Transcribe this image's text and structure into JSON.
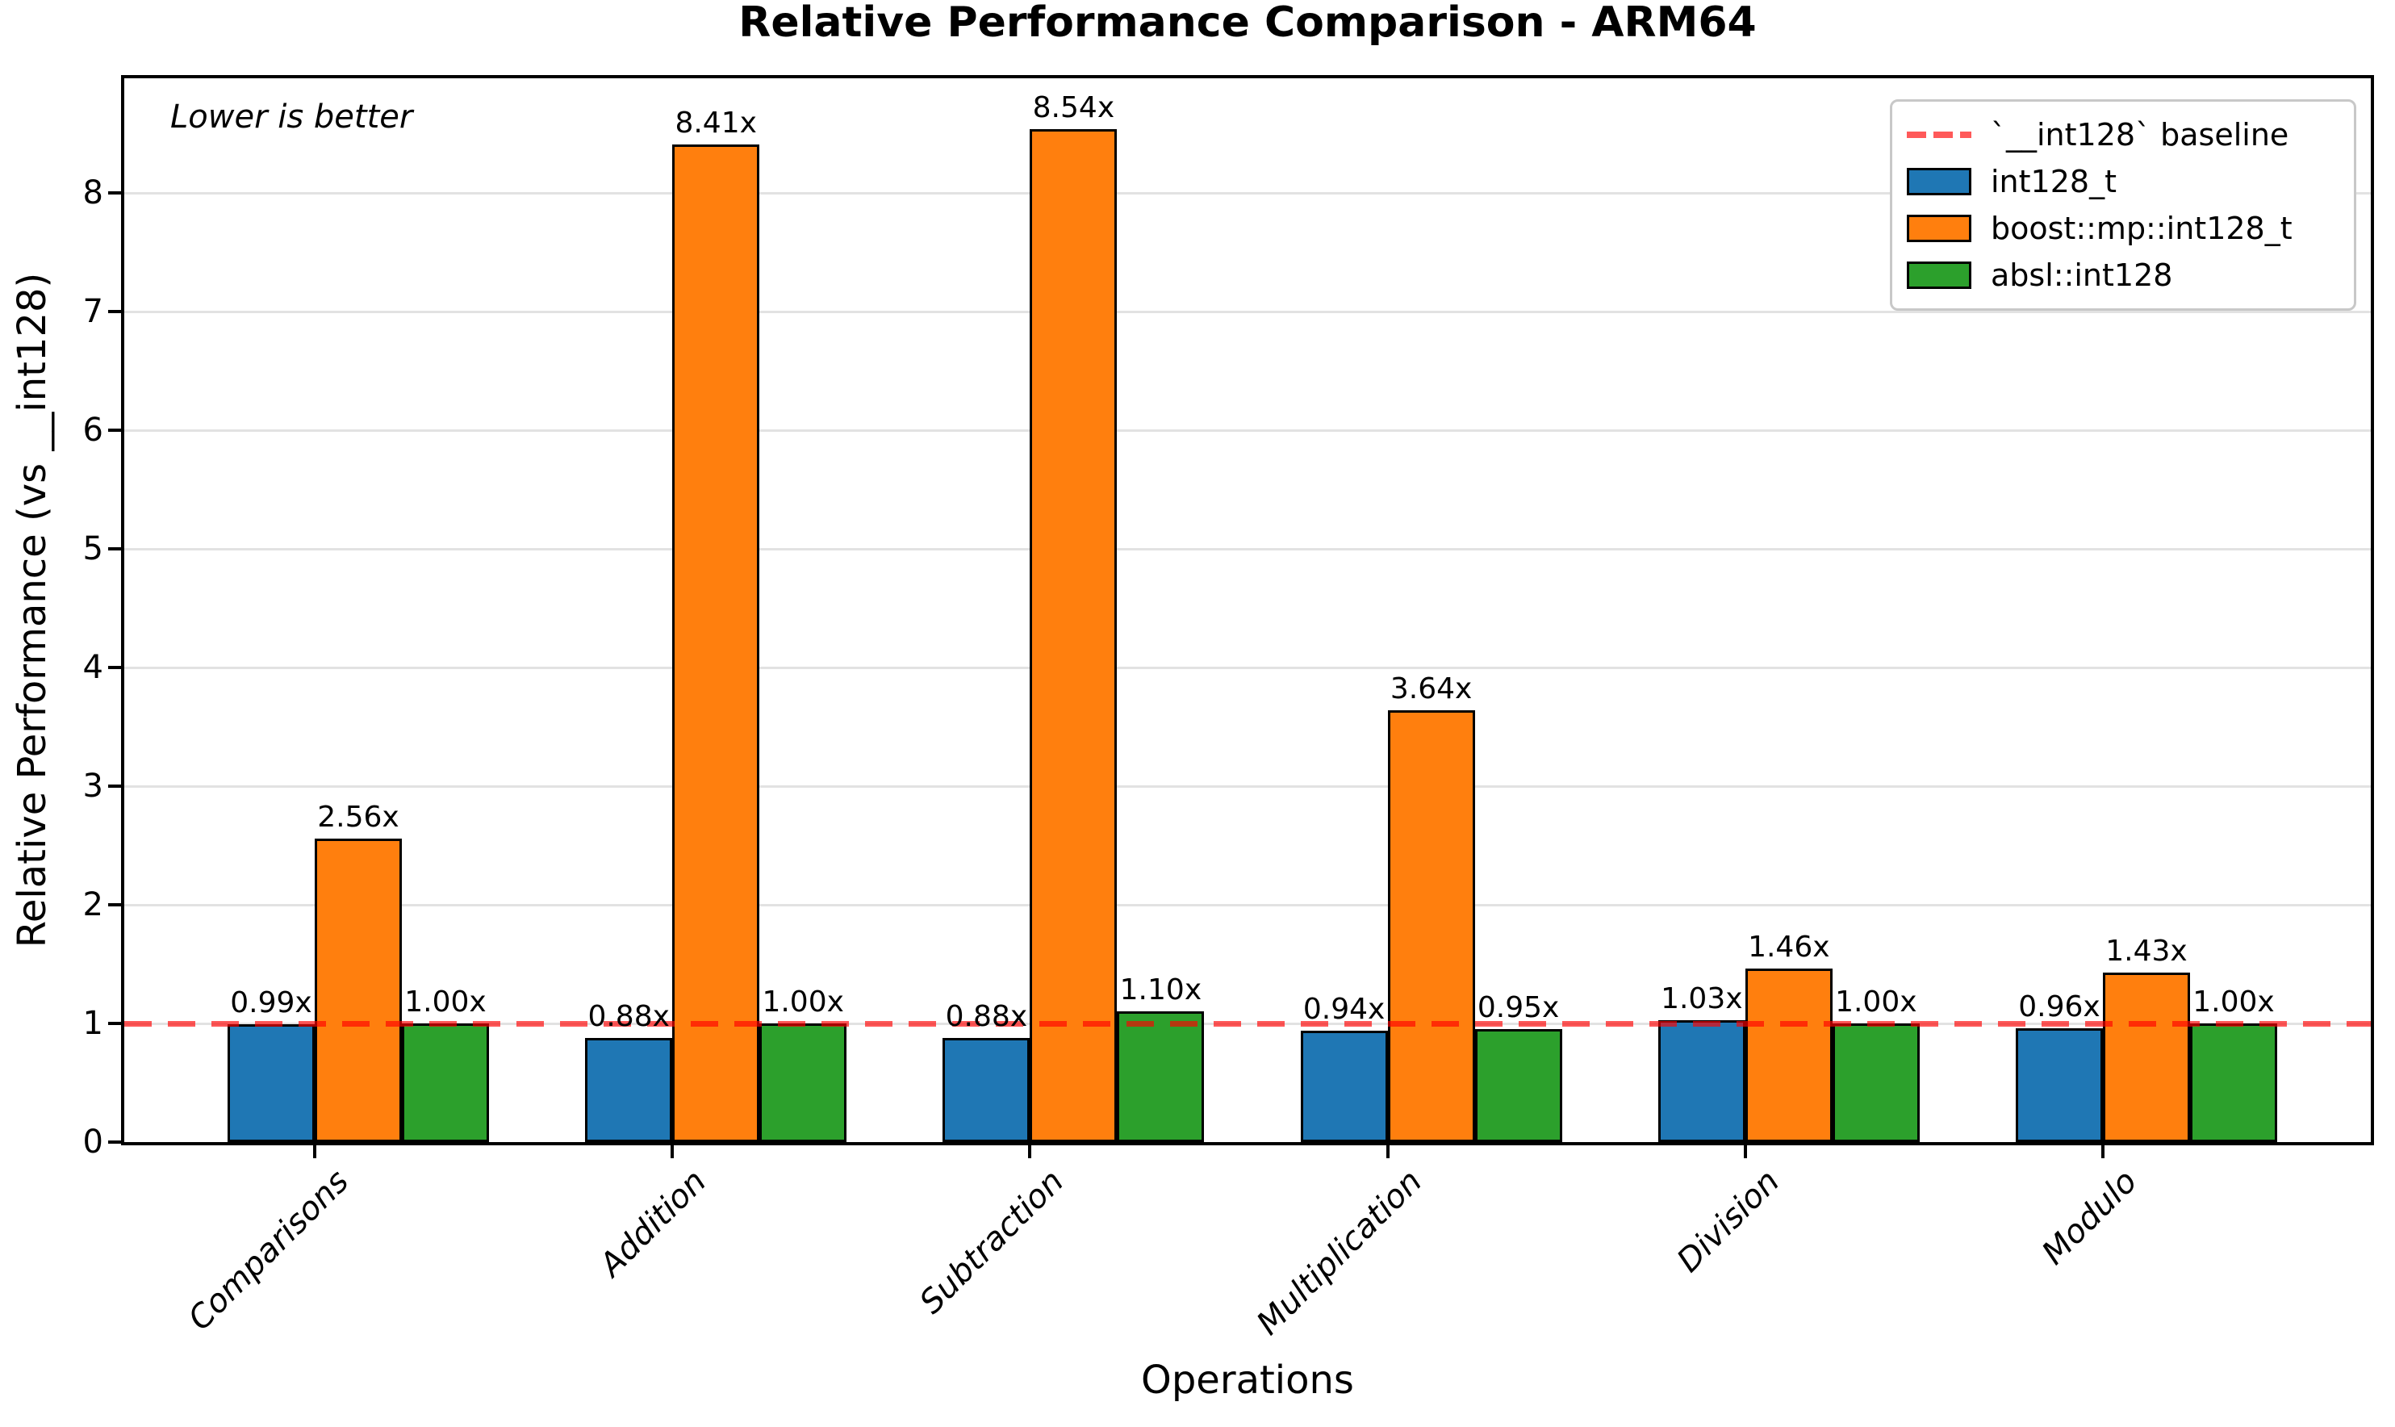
{
  "chart_data": {
    "type": "bar",
    "title": "Relative Performance Comparison - ARM64",
    "xlabel": "Operations",
    "ylabel": "Relative Performance (vs __int128)",
    "annotation": "Lower is better",
    "categories": [
      "Comparisons",
      "Addition",
      "Subtraction",
      "Multiplication",
      "Division",
      "Modulo"
    ],
    "series": [
      {
        "name": "int128_t",
        "color": "#1f77b4",
        "values": [
          0.99,
          0.88,
          0.88,
          0.94,
          1.03,
          0.96
        ],
        "labels": [
          "0.99x",
          "0.88x",
          "0.88x",
          "0.94x",
          "1.03x",
          "0.96x"
        ]
      },
      {
        "name": "boost::mp::int128_t",
        "color": "#ff7f0e",
        "values": [
          2.56,
          8.41,
          8.54,
          3.64,
          1.46,
          1.43
        ],
        "labels": [
          "2.56x",
          "8.41x",
          "8.54x",
          "3.64x",
          "1.46x",
          "1.43x"
        ]
      },
      {
        "name": "absl::int128",
        "color": "#2ca02c",
        "values": [
          1.0,
          1.0,
          1.1,
          0.95,
          1.0,
          1.0
        ],
        "labels": [
          "1.00x",
          "1.00x",
          "1.10x",
          "0.95x",
          "1.00x",
          "1.00x"
        ]
      }
    ],
    "baseline": {
      "value": 1.0,
      "label": "`__int128` baseline",
      "color": "rgba(255,0,0,0.65)"
    },
    "yticks": [
      0,
      1,
      2,
      3,
      4,
      5,
      6,
      7,
      8
    ],
    "ylim": [
      0,
      8.97
    ],
    "grid": true,
    "legend_position": "upper right",
    "lower_is_better": true
  }
}
